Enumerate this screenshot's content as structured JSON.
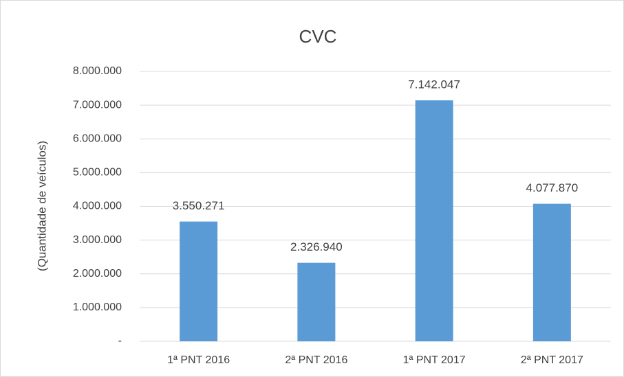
{
  "chart_data": {
    "type": "bar",
    "title": "CVC",
    "y_label": "(Quantidade de veículos)",
    "categories": [
      "1ª PNT 2016",
      "2ª PNT 2016",
      "1ª PNT 2017",
      "2ª PNT 2017"
    ],
    "values": [
      3550271,
      2326940,
      7142047,
      4077870
    ],
    "value_labels": [
      "3.550.271",
      "2.326.940",
      "7.142.047",
      "4.077.870"
    ],
    "color": "#5b9bd5",
    "ylim": [
      0,
      8000000
    ],
    "yticks": [
      {
        "value": 0,
        "label": "-"
      },
      {
        "value": 1000000,
        "label": "1.000.000"
      },
      {
        "value": 2000000,
        "label": "2.000.000"
      },
      {
        "value": 3000000,
        "label": "3.000.000"
      },
      {
        "value": 4000000,
        "label": "4.000.000"
      },
      {
        "value": 5000000,
        "label": "5.000.000"
      },
      {
        "value": 6000000,
        "label": "6.000.000"
      },
      {
        "value": 7000000,
        "label": "7.000.000"
      },
      {
        "value": 8000000,
        "label": "8.000.000"
      }
    ],
    "grid": true
  }
}
